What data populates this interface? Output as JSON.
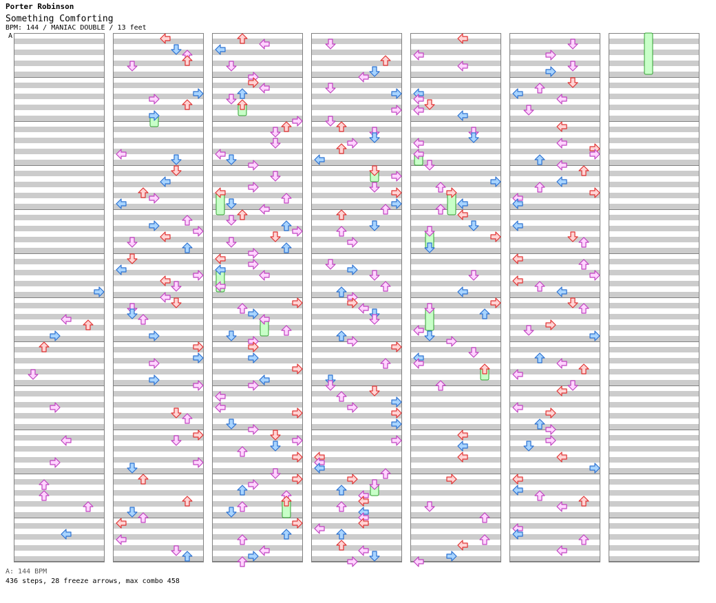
{
  "header": {
    "artist": "Porter Robinson",
    "title": "Something Comforting",
    "info": "BPM: 144 / MANIAC DOUBLE / 13 feet"
  },
  "bpm_marker": "A",
  "footer": {
    "bpm_line": "A: 144 BPM",
    "stats_line": "436 steps, 28 freeze arrows, max combo 458"
  },
  "colors": {
    "stripe": "#cccccc",
    "red_fill": "#ffd4d4",
    "red_stroke": "#e03030",
    "blue_fill": "#a8d4ff",
    "blue_stroke": "#2a70d0",
    "pink_fill": "#ffd4ff",
    "pink_stroke": "#c040c0",
    "freeze_fill": "#c8ffc8",
    "freeze_stroke": "#30a030"
  },
  "chart": {
    "columns": 7,
    "measures_per_column": 12,
    "lanes": 8,
    "lane_order": [
      "left",
      "down",
      "up",
      "right",
      "left",
      "down",
      "up",
      "right"
    ]
  }
}
